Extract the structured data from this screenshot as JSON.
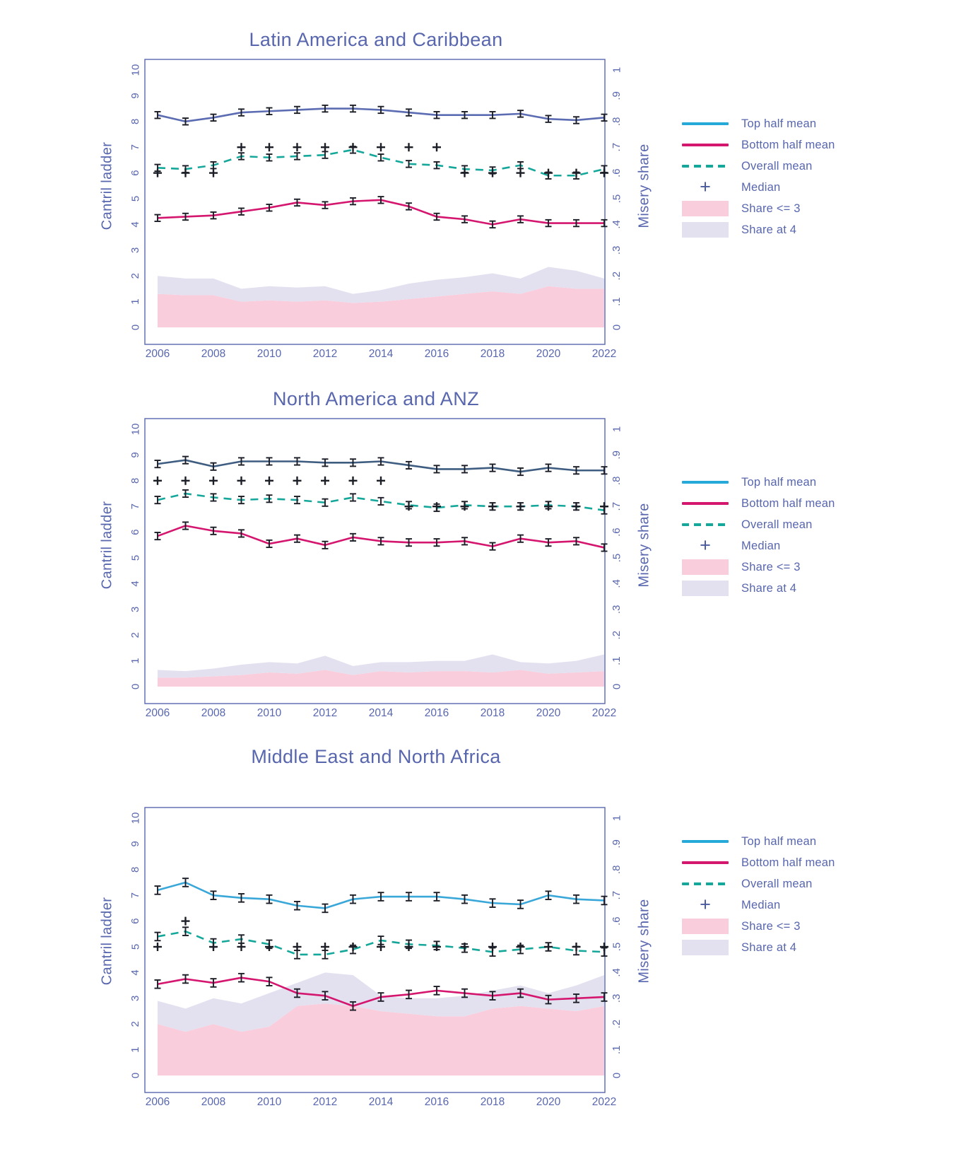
{
  "axes": {
    "left_ticks": [
      "0",
      "1",
      "2",
      "3",
      "4",
      "5",
      "6",
      "7",
      "8",
      "9",
      "10"
    ],
    "right_ticks": [
      "0",
      ".1",
      ".2",
      ".3",
      ".4",
      ".5",
      ".6",
      ".7",
      ".8",
      ".9",
      "1"
    ],
    "x_ticks": [
      "2006",
      "2008",
      "2010",
      "2012",
      "2014",
      "2016",
      "2018",
      "2020",
      "2022"
    ]
  },
  "colors": {
    "frame": "#5866ae",
    "text": "#5866ae",
    "marker": "#1c1e27",
    "pink_fill": "#f9cddc",
    "lavender_fill": "#e3e1f0",
    "teal": "#16a79b",
    "magenta": "#d4166f",
    "legend_cyan": "#25a9d8",
    "legend_plus": "#4a5aa0"
  },
  "legend": {
    "items": [
      {
        "label": "Top half mean",
        "swatch": "line",
        "color": "#25a9d8"
      },
      {
        "label": "Bottom half mean",
        "swatch": "line",
        "color": "#d4166f"
      },
      {
        "label": "Overall mean",
        "swatch": "dash",
        "color": "#16a79b"
      },
      {
        "label": "Median",
        "swatch": "plus",
        "symbol": "+",
        "color": "#4a5aa0"
      },
      {
        "label": "Share <= 3",
        "swatch": "box",
        "color": "#f9cddc"
      },
      {
        "label": "Share at 4",
        "swatch": "box",
        "color": "#e3e1f0"
      }
    ]
  },
  "chart_data": [
    {
      "type": "line",
      "title": "Latin America and Caribbean",
      "ylabel_left": "Cantril ladder",
      "ylabel_right": "Misery share",
      "ylim_left": [
        0,
        10
      ],
      "ylim_right": [
        0,
        1
      ],
      "x": [
        2006,
        2007,
        2008,
        2009,
        2010,
        2011,
        2012,
        2013,
        2014,
        2015,
        2016,
        2017,
        2018,
        2019,
        2020,
        2021,
        2022
      ],
      "err": 0.13,
      "series": [
        {
          "name": "Top half mean",
          "kind": "line",
          "color": "#5c6cb2",
          "values": [
            8.25,
            8.0,
            8.15,
            8.35,
            8.4,
            8.45,
            8.5,
            8.5,
            8.45,
            8.35,
            8.25,
            8.25,
            8.25,
            8.3,
            8.1,
            8.05,
            8.15
          ]
        },
        {
          "name": "Bottom half mean",
          "kind": "line",
          "color": "#d4166f",
          "values": [
            4.25,
            4.3,
            4.35,
            4.5,
            4.65,
            4.85,
            4.75,
            4.9,
            4.95,
            4.7,
            4.3,
            4.2,
            4.0,
            4.2,
            4.05,
            4.05,
            4.05
          ]
        },
        {
          "name": "Overall mean",
          "kind": "line",
          "dashed": true,
          "color": "#16a79b",
          "values": [
            6.2,
            6.15,
            6.3,
            6.65,
            6.6,
            6.65,
            6.7,
            6.9,
            6.6,
            6.35,
            6.3,
            6.15,
            6.1,
            6.3,
            5.9,
            5.9,
            6.15
          ]
        },
        {
          "name": "Median",
          "kind": "marker",
          "marker": "plus",
          "color": "#1c1e27",
          "values": [
            6,
            6,
            6,
            7,
            7,
            7,
            7,
            7,
            7,
            7,
            7,
            6,
            6,
            6,
            6,
            6,
            6
          ]
        },
        {
          "name": "Share <= 3",
          "kind": "area",
          "axis": "right",
          "color": "#f9cddc",
          "values": [
            0.13,
            0.125,
            0.125,
            0.1,
            0.105,
            0.1,
            0.105,
            0.095,
            0.1,
            0.11,
            0.12,
            0.13,
            0.14,
            0.13,
            0.16,
            0.15,
            0.15
          ]
        },
        {
          "name": "Share at 4",
          "kind": "area",
          "axis": "right",
          "stacked_on": "Share <= 3",
          "color": "#e3e1f0",
          "values": [
            0.07,
            0.065,
            0.065,
            0.05,
            0.055,
            0.055,
            0.055,
            0.035,
            0.045,
            0.06,
            0.065,
            0.065,
            0.07,
            0.06,
            0.075,
            0.07,
            0.04
          ]
        }
      ]
    },
    {
      "type": "line",
      "title": "North America and ANZ",
      "ylabel_left": "Cantril ladder",
      "ylabel_right": "Misery share",
      "ylim_left": [
        0,
        10
      ],
      "ylim_right": [
        0,
        1
      ],
      "x": [
        2006,
        2007,
        2008,
        2009,
        2010,
        2011,
        2012,
        2013,
        2014,
        2015,
        2016,
        2017,
        2018,
        2019,
        2020,
        2021,
        2022
      ],
      "err": 0.14,
      "series": [
        {
          "name": "Top half mean",
          "kind": "line",
          "color": "#3e5d81",
          "values": [
            8.65,
            8.8,
            8.55,
            8.75,
            8.75,
            8.75,
            8.7,
            8.7,
            8.75,
            8.6,
            8.45,
            8.45,
            8.5,
            8.35,
            8.5,
            8.4,
            8.4
          ]
        },
        {
          "name": "Bottom half mean",
          "kind": "line",
          "color": "#d4166f",
          "values": [
            5.85,
            6.25,
            6.05,
            5.95,
            5.55,
            5.75,
            5.5,
            5.8,
            5.65,
            5.6,
            5.6,
            5.65,
            5.45,
            5.75,
            5.6,
            5.65,
            5.4
          ]
        },
        {
          "name": "Overall mean",
          "kind": "line",
          "dashed": true,
          "color": "#16a79b",
          "values": [
            7.25,
            7.5,
            7.35,
            7.25,
            7.3,
            7.25,
            7.15,
            7.35,
            7.2,
            7.05,
            6.95,
            7.05,
            7.0,
            7.0,
            7.05,
            7.0,
            6.85
          ]
        },
        {
          "name": "Median",
          "kind": "marker",
          "marker": "plus",
          "color": "#1c1e27",
          "values": [
            8,
            8,
            8,
            8,
            8,
            8,
            8,
            8,
            8,
            7,
            7,
            7,
            7,
            7,
            7,
            7,
            7
          ]
        },
        {
          "name": "Share <= 3",
          "kind": "area",
          "axis": "right",
          "color": "#f9cddc",
          "values": [
            0.035,
            0.035,
            0.04,
            0.045,
            0.055,
            0.05,
            0.065,
            0.045,
            0.06,
            0.055,
            0.06,
            0.06,
            0.055,
            0.065,
            0.05,
            0.055,
            0.06
          ]
        },
        {
          "name": "Share at 4",
          "kind": "area",
          "axis": "right",
          "stacked_on": "Share <= 3",
          "color": "#e3e1f0",
          "values": [
            0.03,
            0.025,
            0.03,
            0.04,
            0.04,
            0.04,
            0.055,
            0.035,
            0.035,
            0.04,
            0.04,
            0.04,
            0.07,
            0.03,
            0.04,
            0.045,
            0.065
          ]
        }
      ]
    },
    {
      "type": "line",
      "title": "Middle East and North Africa",
      "ylabel_left": "Cantril ladder",
      "ylabel_right": "Misery share",
      "ylim_left": [
        0,
        10
      ],
      "ylim_right": [
        0,
        1
      ],
      "x": [
        2006,
        2007,
        2008,
        2009,
        2010,
        2011,
        2012,
        2013,
        2014,
        2015,
        2016,
        2017,
        2018,
        2019,
        2020,
        2021,
        2022
      ],
      "err": 0.16,
      "series": [
        {
          "name": "Top half mean",
          "kind": "line",
          "color": "#3aa7d9",
          "values": [
            7.2,
            7.5,
            7.0,
            6.9,
            6.85,
            6.6,
            6.5,
            6.85,
            6.95,
            6.95,
            6.95,
            6.85,
            6.7,
            6.65,
            7.0,
            6.85,
            6.8
          ]
        },
        {
          "name": "Bottom half mean",
          "kind": "line",
          "color": "#d4166f",
          "values": [
            3.55,
            3.75,
            3.6,
            3.8,
            3.65,
            3.2,
            3.1,
            2.7,
            3.05,
            3.15,
            3.3,
            3.2,
            3.1,
            3.2,
            2.95,
            3.0,
            3.05
          ]
        },
        {
          "name": "Overall mean",
          "kind": "line",
          "dashed": true,
          "color": "#16a79b",
          "values": [
            5.4,
            5.6,
            5.15,
            5.3,
            5.1,
            4.7,
            4.7,
            4.9,
            5.25,
            5.1,
            5.05,
            4.95,
            4.8,
            4.9,
            5.0,
            4.85,
            4.8
          ]
        },
        {
          "name": "Median",
          "kind": "marker",
          "marker": "plus",
          "color": "#1c1e27",
          "values": [
            5,
            6,
            5,
            5,
            5,
            5,
            5,
            5,
            5,
            5,
            5,
            5,
            5,
            5,
            5,
            5,
            5
          ]
        },
        {
          "name": "Share <= 3",
          "kind": "area",
          "axis": "right",
          "color": "#f9cddc",
          "values": [
            0.2,
            0.17,
            0.2,
            0.17,
            0.19,
            0.27,
            0.28,
            0.27,
            0.25,
            0.24,
            0.23,
            0.23,
            0.26,
            0.27,
            0.26,
            0.25,
            0.27
          ]
        },
        {
          "name": "Share at 4",
          "kind": "area",
          "axis": "right",
          "stacked_on": "Share <= 3",
          "color": "#e3e1f0",
          "values": [
            0.09,
            0.09,
            0.1,
            0.11,
            0.13,
            0.09,
            0.12,
            0.12,
            0.06,
            0.06,
            0.07,
            0.08,
            0.07,
            0.08,
            0.06,
            0.1,
            0.12
          ]
        }
      ]
    }
  ]
}
